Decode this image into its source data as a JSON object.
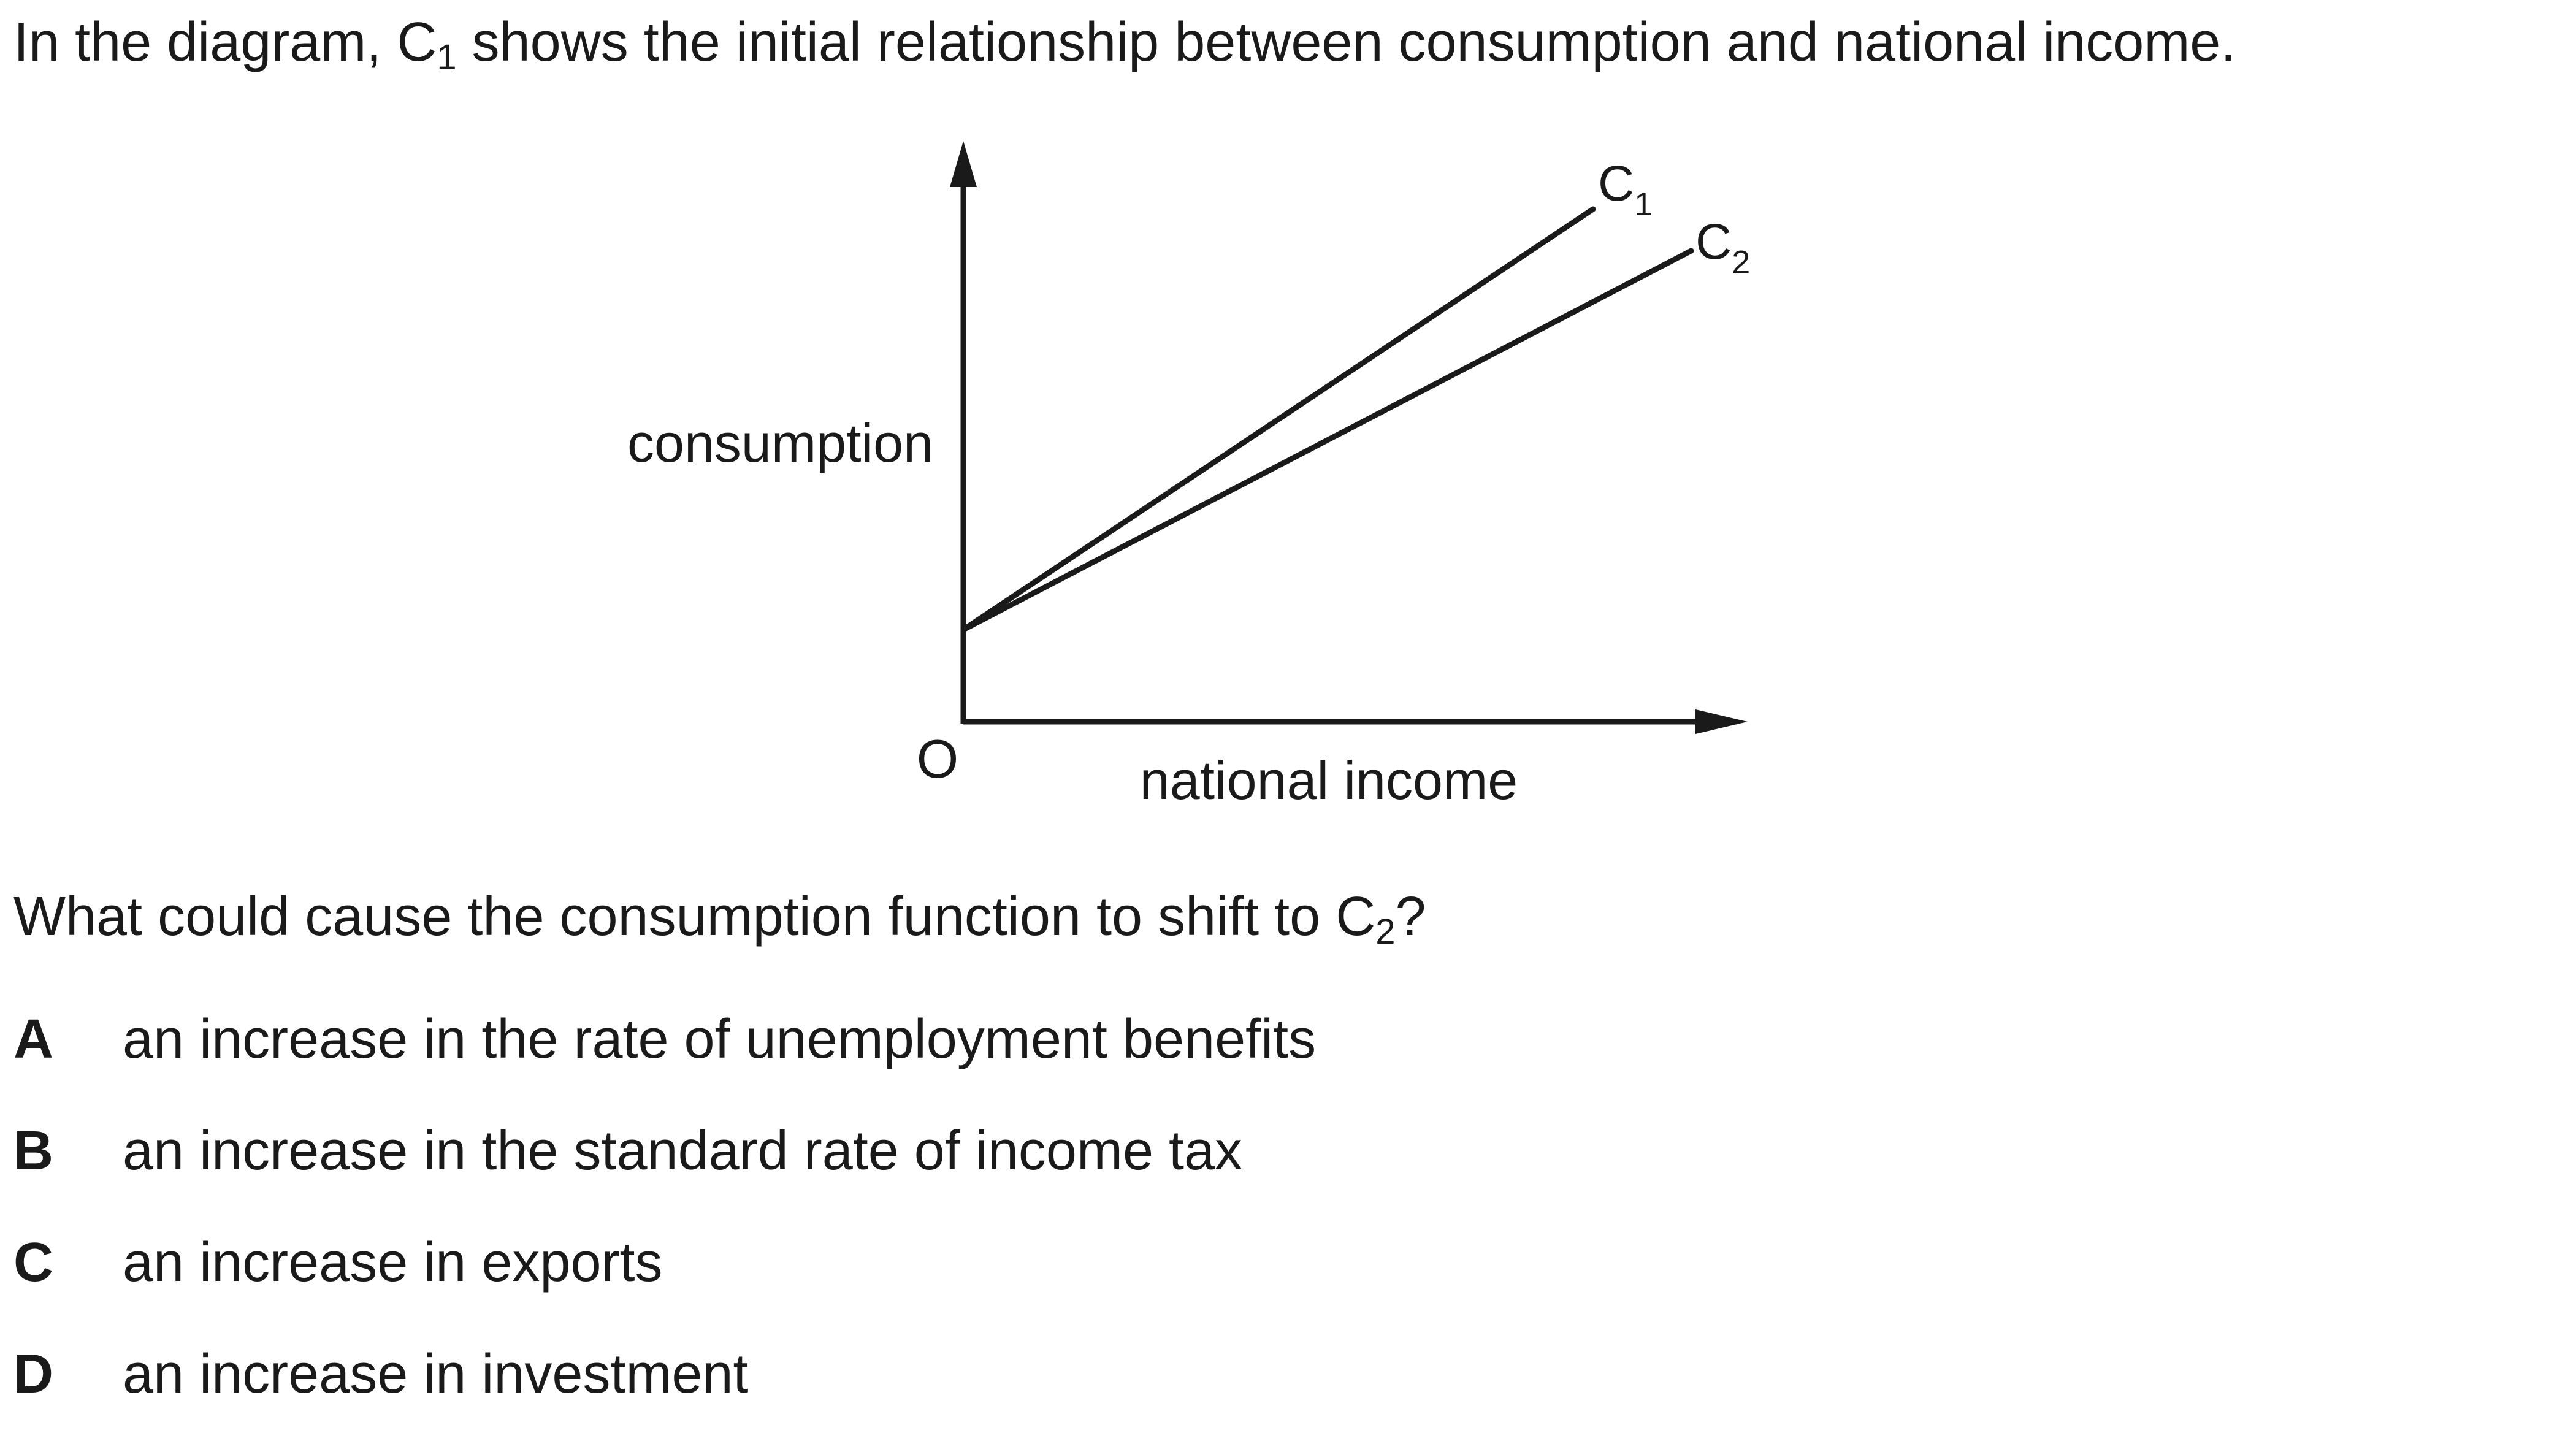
{
  "question": {
    "intro": {
      "before": "In the diagram, C",
      "sub": "1",
      "after": " shows the initial relationship between consumption and national income."
    },
    "prompt": {
      "before": "What could cause the consumption function to shift to C",
      "sub": "2",
      "after": "?"
    },
    "options": [
      {
        "letter": "A",
        "text": "an increase in the rate of unemployment benefits"
      },
      {
        "letter": "B",
        "text": "an increase in the standard rate of income tax"
      },
      {
        "letter": "C",
        "text": "an increase in exports"
      },
      {
        "letter": "D",
        "text": "an increase in investment"
      }
    ]
  },
  "diagram": {
    "y_axis_label": "consumption",
    "x_axis_label": "national income",
    "origin_label": "O",
    "curves": [
      {
        "label": "C",
        "sub": "1"
      },
      {
        "label": "C",
        "sub": "2"
      }
    ]
  }
}
